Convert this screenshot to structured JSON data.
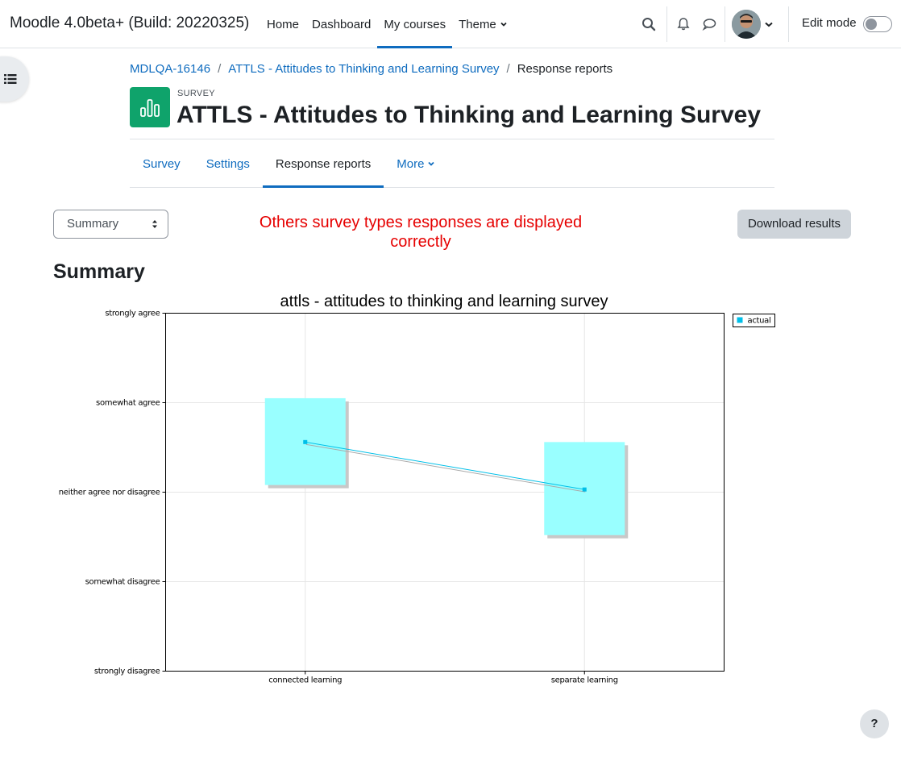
{
  "navbar": {
    "site_name": "Moodle 4.0beta+ (Build: 20220325)",
    "items": [
      {
        "label": "Home",
        "active": false
      },
      {
        "label": "Dashboard",
        "active": false
      },
      {
        "label": "My courses",
        "active": true
      },
      {
        "label": "Theme",
        "active": false,
        "dropdown": true
      }
    ],
    "edit_mode_label": "Edit mode",
    "edit_mode_on": false
  },
  "breadcrumb": {
    "items": [
      "MDLQA-16146",
      "ATTLS - Attitudes to Thinking and Learning Survey"
    ],
    "current": "Response reports"
  },
  "header": {
    "activity_type": "SURVEY",
    "title": "ATTLS - Attitudes to Thinking and Learning Survey",
    "icon": "chart-icon",
    "icon_color": "#0fa36b"
  },
  "secondary_nav": {
    "tabs": [
      {
        "label": "Survey",
        "active": false
      },
      {
        "label": "Settings",
        "active": false
      },
      {
        "label": "Response reports",
        "active": true
      },
      {
        "label": "More",
        "active": false,
        "dropdown": true
      }
    ]
  },
  "report_select": {
    "selected": "Summary"
  },
  "note": "Others survey types responses are displayed correctly",
  "note_color": "#e60000",
  "download_button": "Download results",
  "summary_heading": "Summary",
  "help_button": "?",
  "accent_color": "#0f6cbf",
  "chart_data": {
    "type": "line",
    "title": "attls - attitudes to thinking and learning survey",
    "categories": [
      "connected learning",
      "separate learning"
    ],
    "y_ticks": [
      "strongly disagree",
      "somewhat disagree",
      "neither agree nor disagree",
      "somewhat agree",
      "strongly agree"
    ],
    "ylim": [
      1,
      5
    ],
    "series": [
      {
        "name": "actual",
        "values": [
          3.56,
          3.03
        ],
        "color": "#00bfe8"
      }
    ],
    "boxes": [
      {
        "category": "connected learning",
        "low": 3.08,
        "high": 4.05
      },
      {
        "category": "separate learning",
        "low": 2.52,
        "high": 3.56
      }
    ],
    "box_color": "#99ffff",
    "grid": true,
    "legend_position": "right"
  }
}
